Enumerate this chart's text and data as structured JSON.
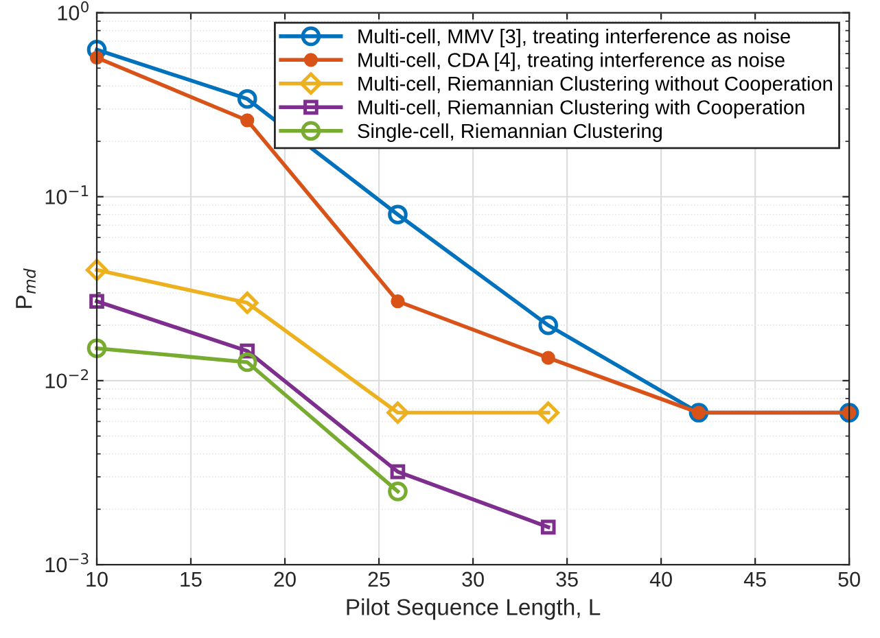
{
  "chart_data": {
    "type": "line",
    "xlabel": "Pilot Sequence Length, L",
    "ylabel": "P$_{md}$",
    "log": "y",
    "grid": true,
    "legend": "top right",
    "xlim": [
      10,
      50
    ],
    "xticks": [
      10,
      15,
      20,
      25,
      30,
      35,
      40,
      45,
      50
    ],
    "ylim": [
      0.001,
      1
    ],
    "yticks": [
      {
        "value": 0.001,
        "label": "10$^{−3}$"
      },
      {
        "value": 0.01,
        "label": "10$^{−2}$"
      },
      {
        "value": 0.1,
        "label": "10$^{−1}$"
      },
      {
        "value": 1,
        "label": "10$^{0}$"
      }
    ],
    "series": [
      {
        "name": "Multi-cell, MMV [3], treating interference as noise",
        "color": "#0072bd",
        "marker": "circle",
        "x": [
          10,
          18,
          26,
          34,
          42,
          50
        ],
        "values": [
          0.63,
          0.34,
          0.08,
          0.02,
          0.0067,
          0.0067
        ]
      },
      {
        "name": "Multi-cell, CDA [4], treating interference as noise",
        "color": "#d95319",
        "marker": "filled_circle",
        "x": [
          10,
          18,
          26,
          34,
          42,
          50
        ],
        "values": [
          0.57,
          0.26,
          0.027,
          0.0133,
          0.0067,
          0.0067
        ]
      },
      {
        "name": "Multi-cell, Riemannian Clustering without Cooperation",
        "color": "#edb120",
        "marker": "diamond",
        "x": [
          10,
          18,
          26,
          34
        ],
        "values": [
          0.04,
          0.0265,
          0.0067,
          0.0067
        ]
      },
      {
        "name": "Multi-cell, Riemannian Clustering with Cooperation",
        "color": "#7e2f8e",
        "marker": "square",
        "x": [
          10,
          18,
          26,
          34
        ],
        "values": [
          0.027,
          0.0145,
          0.0032,
          0.0016
        ]
      },
      {
        "name": "Single-cell, Riemannian Clustering",
        "color": "#77ac30",
        "marker": "circle",
        "x": [
          10,
          18,
          26
        ],
        "values": [
          0.015,
          0.0126,
          0.0025
        ]
      }
    ]
  }
}
